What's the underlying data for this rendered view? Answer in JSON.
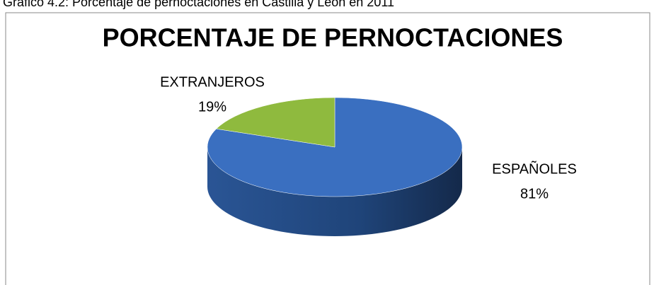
{
  "caption": "Gráfico 4.2: Porcentaje de pernoctaciones en Castilla y León en 2011",
  "chart_data": {
    "type": "pie3d",
    "title": "PORCENTAJE DE PERNOCTACIONES",
    "categories": [
      "ESPAÑOLES",
      "EXTRANJEROS"
    ],
    "values": [
      81,
      19
    ],
    "value_labels": [
      "81%",
      "19%"
    ],
    "colors": [
      "#3a6fc0",
      "#8fba3e"
    ]
  }
}
